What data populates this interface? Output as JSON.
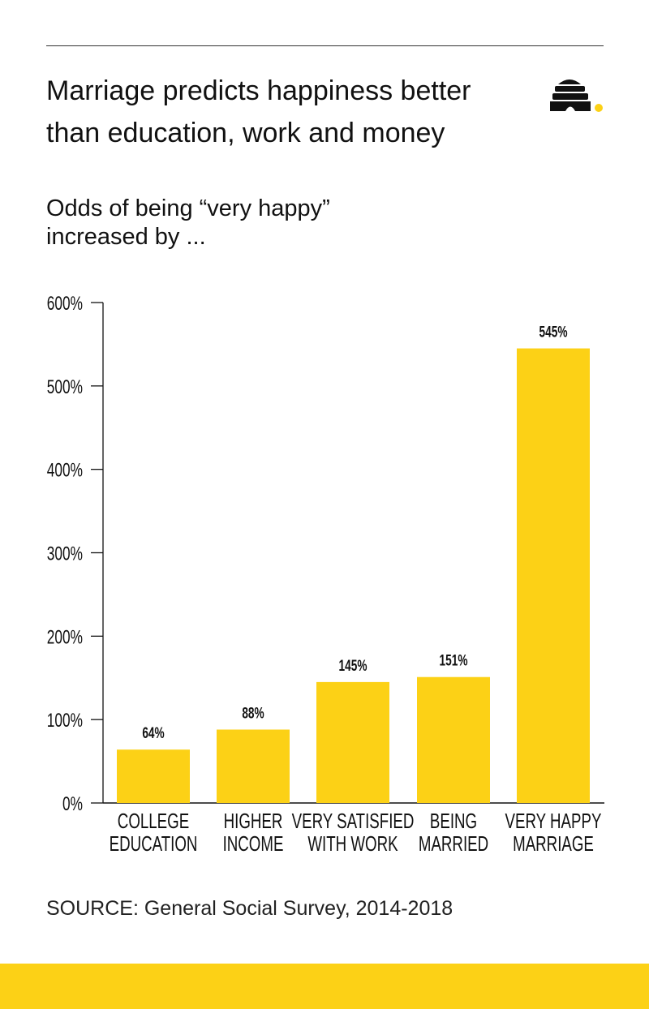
{
  "header": {
    "title": "Marriage predicts happiness better than education, work and money",
    "subtitle_line1": "Odds of being “very happy”",
    "subtitle_line2": "increased by ...",
    "logo": "beehive-logo"
  },
  "source": "SOURCE: General Social Survey, 2014-2018",
  "colors": {
    "bar": "#fcd116",
    "text": "#111111",
    "footer": "#fcd116"
  },
  "chart_data": {
    "type": "bar",
    "title": "Marriage predicts happiness better than education, work and money",
    "ylabel": "Odds of being “very happy” increased by ...",
    "xlabel": "",
    "categories": [
      [
        "COLLEGE",
        "EDUCATION"
      ],
      [
        "HIGHER",
        "INCOME"
      ],
      [
        "VERY SATISFIED",
        "WITH WORK"
      ],
      [
        "BEING",
        "MARRIED"
      ],
      [
        "VERY HAPPY",
        "MARRIAGE"
      ]
    ],
    "values": [
      64,
      88,
      145,
      151,
      545
    ],
    "value_labels": [
      "64%",
      "88%",
      "145%",
      "151%",
      "545%"
    ],
    "ylim": [
      0,
      600
    ],
    "yticks": [
      0,
      100,
      200,
      300,
      400,
      500,
      600
    ],
    "ytick_labels": [
      "0%",
      "100%",
      "200%",
      "300%",
      "400%",
      "500%",
      "600%"
    ],
    "grid": false
  }
}
